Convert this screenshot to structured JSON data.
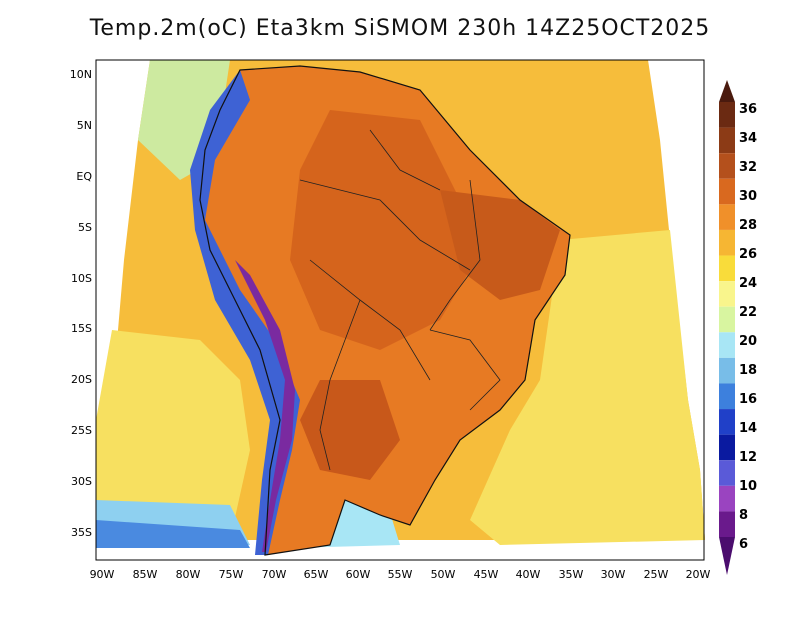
{
  "title": "Temp.2m(oC) Eta3km SiSMOM 230h 14Z25OCT2025",
  "lat_labels": [
    "10N",
    "5N",
    "EQ",
    "5S",
    "10S",
    "15S",
    "20S",
    "25S",
    "30S",
    "35S"
  ],
  "lon_labels": [
    "90W",
    "85W",
    "80W",
    "75W",
    "70W",
    "65W",
    "60W",
    "55W",
    "50W",
    "45W",
    "40W",
    "35W",
    "30W",
    "25W",
    "20W"
  ],
  "colorbar": {
    "labels": [
      "36",
      "34",
      "32",
      "30",
      "28",
      "26",
      "24",
      "22",
      "20",
      "18",
      "16",
      "14",
      "12",
      "10",
      "8",
      "6"
    ],
    "colors": [
      "#6b2a12",
      "#8c3b16",
      "#b4501c",
      "#d9691f",
      "#f0902a",
      "#f6b633",
      "#f9dc3a",
      "#f9f58c",
      "#d8f5a0",
      "#a8e6f5",
      "#78bde8",
      "#3d80dd",
      "#2040c8",
      "#0a1aa0",
      "#5a5ad8",
      "#9a44c0",
      "#6a1a8c"
    ],
    "top_arrow_color": "#4a1a0e",
    "bottom_arrow_color": "#4b0d6e"
  }
}
